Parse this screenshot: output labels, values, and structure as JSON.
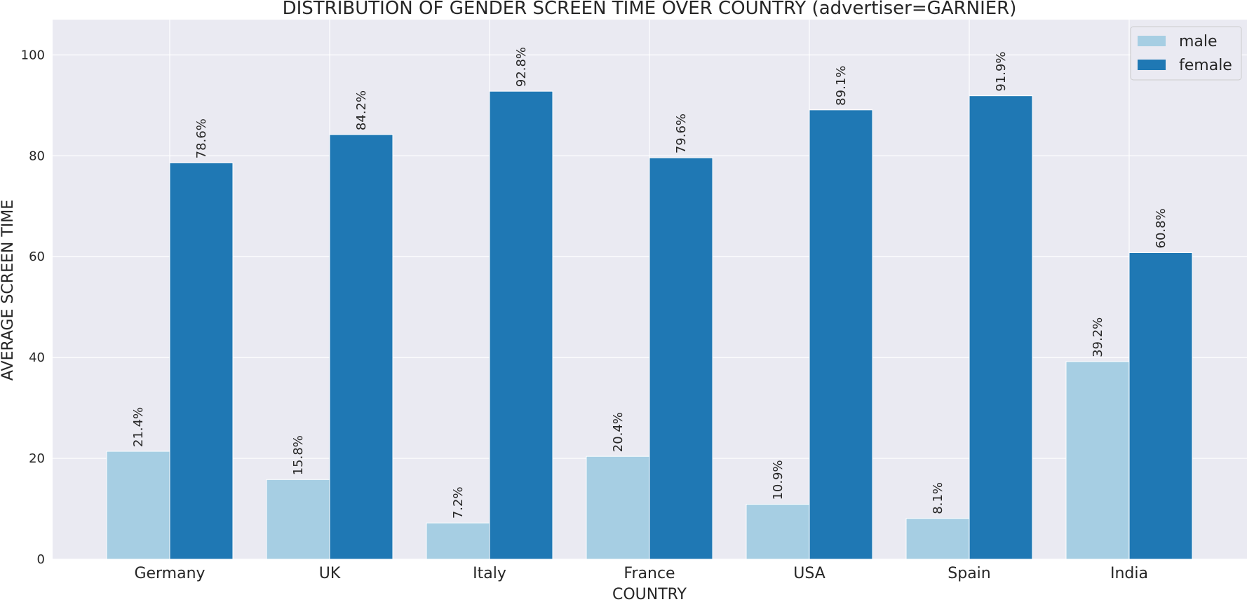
{
  "chart_data": {
    "type": "bar",
    "title": "DISTRIBUTION OF GENDER SCREEN TIME OVER COUNTRY (advertiser=GARNIER)",
    "xlabel": "COUNTRY",
    "ylabel": "AVERAGE SCREEN TIME",
    "categories": [
      "Germany",
      "UK",
      "Italy",
      "France",
      "USA",
      "Spain",
      "India"
    ],
    "series": [
      {
        "name": "male",
        "color": "#a6cee3",
        "values": [
          21.4,
          15.8,
          7.2,
          20.4,
          10.9,
          8.1,
          39.2
        ],
        "labels": [
          "21.4%",
          "15.8%",
          "7.2%",
          "20.4%",
          "10.9%",
          "8.1%",
          "39.2%"
        ]
      },
      {
        "name": "female",
        "color": "#1f78b4",
        "values": [
          78.6,
          84.2,
          92.8,
          79.6,
          89.1,
          91.9,
          60.8
        ],
        "labels": [
          "78.6%",
          "84.2%",
          "92.8%",
          "79.6%",
          "89.1%",
          "91.9%",
          "60.8%"
        ]
      }
    ],
    "ylim": [
      0,
      107
    ],
    "yticks": [
      0,
      20,
      40,
      60,
      80,
      100
    ],
    "ytick_labels": [
      "0",
      "20",
      "40",
      "60",
      "80",
      "100"
    ],
    "grid": true,
    "legend_position": "top-right",
    "background": "#eaeaf2"
  }
}
